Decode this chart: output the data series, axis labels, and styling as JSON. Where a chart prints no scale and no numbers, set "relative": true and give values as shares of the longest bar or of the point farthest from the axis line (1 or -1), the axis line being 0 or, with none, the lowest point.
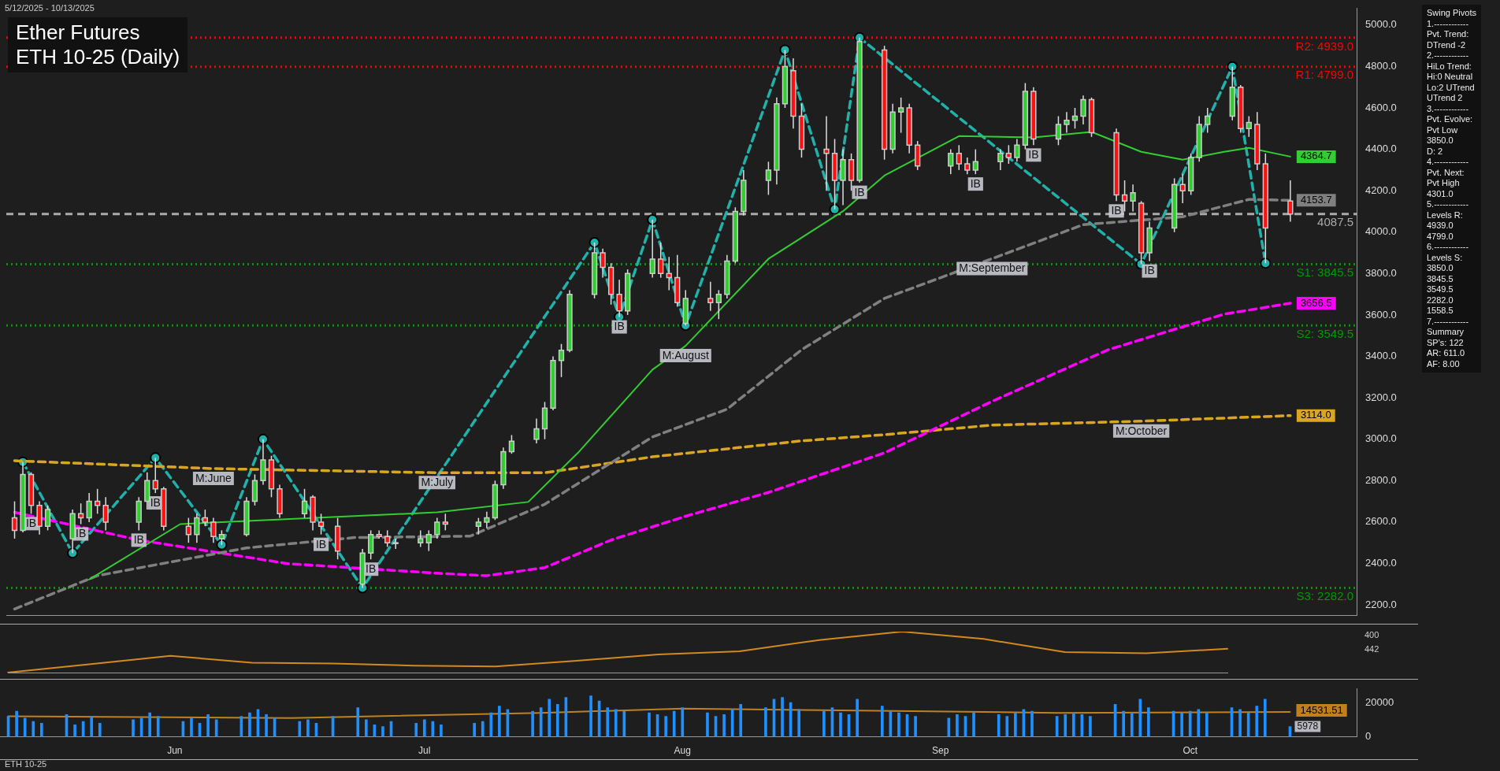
{
  "chart_data": [
    {
      "type": "candlestick",
      "title": "Ether Futures",
      "subtitle": "ETH 10-25 (Daily)",
      "x": [
        "2025-05-12",
        "2025-05-13",
        "2025-05-14",
        "2025-05-15",
        "2025-05-16",
        "2025-05-19",
        "2025-05-20",
        "2025-05-21",
        "2025-05-22",
        "2025-05-23",
        "2025-05-27",
        "2025-05-28",
        "2025-05-29",
        "2025-05-30",
        "2025-06-02",
        "2025-06-03",
        "2025-06-04",
        "2025-06-05",
        "2025-06-06",
        "2025-06-09",
        "2025-06-10",
        "2025-06-11",
        "2025-06-12",
        "2025-06-13",
        "2025-06-16",
        "2025-06-17",
        "2025-06-18",
        "2025-06-20",
        "2025-06-23",
        "2025-06-24",
        "2025-06-25",
        "2025-06-26",
        "2025-06-27",
        "2025-06-30",
        "2025-07-01",
        "2025-07-02",
        "2025-07-03",
        "2025-07-07",
        "2025-07-08",
        "2025-07-09",
        "2025-07-10",
        "2025-07-11",
        "2025-07-14",
        "2025-07-15",
        "2025-07-16",
        "2025-07-17",
        "2025-07-18",
        "2025-07-21",
        "2025-07-22",
        "2025-07-23",
        "2025-07-24",
        "2025-07-25",
        "2025-07-28",
        "2025-07-29",
        "2025-07-30",
        "2025-07-31",
        "2025-08-01",
        "2025-08-04",
        "2025-08-05",
        "2025-08-06",
        "2025-08-07",
        "2025-08-08",
        "2025-08-11",
        "2025-08-12",
        "2025-08-13",
        "2025-08-14",
        "2025-08-15",
        "2025-08-18",
        "2025-08-19",
        "2025-08-20",
        "2025-08-21",
        "2025-08-22",
        "2025-08-25",
        "2025-08-26",
        "2025-08-27",
        "2025-08-28",
        "2025-08-29",
        "2025-09-02",
        "2025-09-03",
        "2025-09-04",
        "2025-09-05",
        "2025-09-08",
        "2025-09-09",
        "2025-09-10",
        "2025-09-11",
        "2025-09-12",
        "2025-09-15",
        "2025-09-16",
        "2025-09-17",
        "2025-09-18",
        "2025-09-19",
        "2025-09-22",
        "2025-09-23",
        "2025-09-24",
        "2025-09-25",
        "2025-09-26",
        "2025-09-29",
        "2025-09-30",
        "2025-10-01",
        "2025-10-02",
        "2025-10-03",
        "2025-10-06",
        "2025-10-07",
        "2025-10-08",
        "2025-10-09",
        "2025-10-10",
        "2025-10-13"
      ],
      "ohlc": [
        [
          2620,
          2700,
          2520,
          2560
        ],
        [
          2560,
          2890,
          2550,
          2830
        ],
        [
          2830,
          2840,
          2640,
          2680
        ],
        [
          2680,
          2700,
          2540,
          2580
        ],
        [
          2580,
          2680,
          2560,
          2660
        ],
        [
          2520,
          2660,
          2450,
          2640
        ],
        [
          2640,
          2690,
          2590,
          2620
        ],
        [
          2620,
          2740,
          2600,
          2700
        ],
        [
          2700,
          2760,
          2640,
          2680
        ],
        [
          2680,
          2720,
          2560,
          2600
        ],
        [
          2600,
          2720,
          2560,
          2700
        ],
        [
          2700,
          2840,
          2660,
          2800
        ],
        [
          2800,
          2910,
          2740,
          2760
        ],
        [
          2760,
          2770,
          2560,
          2580
        ],
        [
          2580,
          2620,
          2500,
          2540
        ],
        [
          2540,
          2640,
          2500,
          2620
        ],
        [
          2620,
          2660,
          2580,
          2600
        ],
        [
          2600,
          2620,
          2500,
          2530
        ],
        [
          2520,
          2560,
          2490,
          2540
        ],
        [
          2540,
          2720,
          2530,
          2700
        ],
        [
          2700,
          2830,
          2680,
          2800
        ],
        [
          2800,
          3000,
          2780,
          2900
        ],
        [
          2900,
          2920,
          2720,
          2760
        ],
        [
          2760,
          2780,
          2620,
          2640
        ],
        [
          2640,
          2760,
          2620,
          2700
        ],
        [
          2720,
          2730,
          2560,
          2600
        ],
        [
          2600,
          2640,
          2540,
          2580
        ],
        [
          2580,
          2620,
          2420,
          2460
        ],
        [
          2300,
          2470,
          2282,
          2450
        ],
        [
          2450,
          2560,
          2420,
          2540
        ],
        [
          2540,
          2560,
          2520,
          2530
        ],
        [
          2530,
          2560,
          2480,
          2500
        ],
        [
          2500,
          2520,
          2470,
          2500
        ],
        [
          2500,
          2560,
          2480,
          2520
        ],
        [
          2500,
          2560,
          2460,
          2540
        ],
        [
          2540,
          2620,
          2520,
          2600
        ],
        [
          2600,
          2640,
          2560,
          2590
        ],
        [
          2580,
          2620,
          2540,
          2600
        ],
        [
          2600,
          2650,
          2570,
          2620
        ],
        [
          2620,
          2800,
          2610,
          2780
        ],
        [
          2780,
          2960,
          2760,
          2940
        ],
        [
          2940,
          3020,
          2930,
          2990
        ],
        [
          3000,
          3100,
          2980,
          3050
        ],
        [
          3050,
          3180,
          3000,
          3150
        ],
        [
          3150,
          3400,
          3140,
          3380
        ],
        [
          3380,
          3460,
          3300,
          3430
        ],
        [
          3430,
          3720,
          3420,
          3700
        ],
        [
          3700,
          3950,
          3680,
          3900
        ],
        [
          3900,
          3920,
          3780,
          3830
        ],
        [
          3830,
          3850,
          3650,
          3700
        ],
        [
          3700,
          3770,
          3590,
          3620
        ],
        [
          3620,
          3820,
          3600,
          3800
        ],
        [
          3800,
          4060,
          3780,
          3870
        ],
        [
          3870,
          3950,
          3780,
          3800
        ],
        [
          3800,
          3880,
          3720,
          3780
        ],
        [
          3780,
          3890,
          3640,
          3660
        ],
        [
          3560,
          3720,
          3549.5,
          3680
        ],
        [
          3680,
          3760,
          3620,
          3660
        ],
        [
          3660,
          3720,
          3580,
          3700
        ],
        [
          3700,
          3890,
          3680,
          3860
        ],
        [
          3860,
          4120,
          3850,
          4100
        ],
        [
          4100,
          4300,
          4080,
          4250
        ],
        [
          4250,
          4340,
          4180,
          4300
        ],
        [
          4300,
          4650,
          4230,
          4620
        ],
        [
          4620,
          4880,
          4600,
          4800
        ],
        [
          4780,
          4840,
          4500,
          4560
        ],
        [
          4560,
          4620,
          4360,
          4400
        ],
        [
          4400,
          4560,
          4200,
          4380
        ],
        [
          4380,
          4450,
          4110,
          4250
        ],
        [
          4250,
          4400,
          4130,
          4350
        ],
        [
          4350,
          4380,
          4200,
          4250
        ],
        [
          4250,
          4939,
          4240,
          4920
        ],
        [
          4880,
          4900,
          4350,
          4400
        ],
        [
          4400,
          4620,
          4380,
          4580
        ],
        [
          4580,
          4650,
          4480,
          4600
        ],
        [
          4600,
          4620,
          4380,
          4420
        ],
        [
          4420,
          4440,
          4300,
          4320
        ],
        [
          4320,
          4400,
          4280,
          4380
        ],
        [
          4380,
          4420,
          4300,
          4330
        ],
        [
          4330,
          4360,
          4280,
          4300
        ],
        [
          4300,
          4400,
          4280,
          4340
        ],
        [
          4340,
          4400,
          4300,
          4380
        ],
        [
          4380,
          4420,
          4330,
          4360
        ],
        [
          4360,
          4450,
          4340,
          4420
        ],
        [
          4420,
          4720,
          4400,
          4680
        ],
        [
          4680,
          4700,
          4420,
          4450
        ],
        [
          4450,
          4560,
          4420,
          4520
        ],
        [
          4520,
          4580,
          4480,
          4540
        ],
        [
          4540,
          4600,
          4500,
          4560
        ],
        [
          4560,
          4660,
          4520,
          4640
        ],
        [
          4640,
          4650,
          4460,
          4480
        ],
        [
          4480,
          4500,
          4150,
          4180
        ],
        [
          4180,
          4250,
          4100,
          4150
        ],
        [
          4150,
          4230,
          4100,
          4190
        ],
        [
          4140,
          4150,
          3845.5,
          3900
        ],
        [
          3900,
          4050,
          3860,
          4020
        ],
        [
          4020,
          4260,
          4000,
          4230
        ],
        [
          4230,
          4280,
          4140,
          4200
        ],
        [
          4200,
          4380,
          4180,
          4360
        ],
        [
          4360,
          4560,
          4340,
          4520
        ],
        [
          4520,
          4600,
          4480,
          4560
        ],
        [
          4560,
          4799,
          4540,
          4700
        ],
        [
          4700,
          4710,
          4480,
          4500
        ],
        [
          4500,
          4560,
          4460,
          4530
        ],
        [
          4520,
          4580,
          4300,
          4330
        ],
        [
          4330,
          4380,
          3850,
          4020
        ],
        [
          4150,
          4250,
          4050,
          4087.5
        ]
      ],
      "series": [
        {
          "type": "line",
          "color": "#33cc33",
          "line_style": "solid",
          "x": [
            "2025-05-21",
            "2025-06-01",
            "2025-07-02",
            "2025-07-13",
            "2025-07-19",
            "2025-07-28",
            "2025-08-01",
            "2025-08-11",
            "2025-08-20",
            "2025-08-25",
            "2025-09-03",
            "2025-09-12",
            "2025-09-19",
            "2025-09-25",
            "2025-09-30",
            "2025-10-05",
            "2025-10-08",
            "2025-10-13"
          ],
          "values": [
            2322,
            2590,
            2647,
            2697,
            2934,
            3336,
            3451,
            3871,
            4101,
            4273,
            4464,
            4457,
            4484,
            4388,
            4350,
            4388,
            4407,
            4364.7
          ],
          "value_labels": [
            null,
            null,
            null,
            null,
            null,
            null,
            null,
            null,
            null,
            null,
            null,
            null,
            null,
            null,
            null,
            null,
            null,
            "4364.7"
          ]
        },
        {
          "type": "line",
          "color": "#808080",
          "line_style": "dashed",
          "x": [
            "2025-05-12",
            "2025-05-22",
            "2025-06-09",
            "2025-06-22",
            "2025-07-06",
            "2025-07-15",
            "2025-07-28",
            "2025-08-06",
            "2025-08-15",
            "2025-08-25",
            "2025-09-07",
            "2025-09-18",
            "2025-09-30",
            "2025-10-08",
            "2025-10-13"
          ],
          "values": [
            2180,
            2341,
            2475,
            2525,
            2532,
            2686,
            3011,
            3145,
            3432,
            3680,
            3872,
            4036,
            4074,
            4158,
            4153.7
          ],
          "value_labels": [
            null,
            null,
            null,
            null,
            null,
            null,
            null,
            null,
            null,
            null,
            null,
            null,
            null,
            null,
            "4153.7"
          ]
        },
        {
          "type": "line",
          "color": "#ff00ff",
          "line_style": "dashed",
          "x": [
            "2025-05-12",
            "2025-05-27",
            "2025-06-14",
            "2025-07-02",
            "2025-07-08",
            "2025-07-15",
            "2025-07-23",
            "2025-08-01",
            "2025-08-11",
            "2025-08-25",
            "2025-09-07",
            "2025-09-21",
            "2025-10-05",
            "2025-10-13"
          ],
          "values": [
            2647,
            2513,
            2399,
            2353,
            2341,
            2380,
            2513,
            2628,
            2743,
            2934,
            3183,
            3432,
            3604,
            3656.5
          ],
          "value_labels": [
            null,
            null,
            null,
            null,
            null,
            null,
            null,
            null,
            null,
            null,
            null,
            null,
            null,
            "3656.5"
          ]
        },
        {
          "type": "line",
          "color": "#daa520",
          "line_style": "dashed",
          "x": [
            "2025-05-12",
            "2025-06-05",
            "2025-07-02",
            "2025-07-15",
            "2025-07-28",
            "2025-08-15",
            "2025-08-25",
            "2025-09-07",
            "2025-09-25",
            "2025-10-13"
          ],
          "values": [
            2896,
            2858,
            2838,
            2838,
            2915,
            2992,
            3022,
            3068,
            3087,
            3114.0
          ],
          "value_labels": [
            null,
            null,
            null,
            null,
            null,
            null,
            null,
            null,
            null,
            "3114.0"
          ]
        },
        {
          "type": "line",
          "color": "#20b2aa",
          "line_style": "dashed",
          "marker": "circle",
          "x": [
            "2025-05-13",
            "2025-05-19",
            "2025-05-29",
            "2025-06-06",
            "2025-06-11",
            "2025-06-23",
            "2025-07-21",
            "2025-07-24",
            "2025-07-28",
            "2025-08-01",
            "2025-08-13",
            "2025-08-19",
            "2025-08-22",
            "2025-09-25",
            "2025-10-06",
            "2025-10-10"
          ],
          "values": [
            2890,
            2450,
            2910,
            2490,
            3000,
            2282,
            3950,
            3590,
            4060,
            3549.5,
            4880,
            4110,
            4939,
            3845.5,
            4799,
            3850
          ]
        }
      ],
      "xlim": [
        "2025-05-11",
        "2025-10-21"
      ],
      "ylim": [
        2150,
        5080
      ],
      "yticks": [
        {
          "value": 2200,
          "label": "2200.0"
        },
        {
          "value": 2400,
          "label": "2400.0"
        },
        {
          "value": 2600,
          "label": "2600.0"
        },
        {
          "value": 2800,
          "label": "2800.0"
        },
        {
          "value": 3000,
          "label": "3000.0"
        },
        {
          "value": 3200,
          "label": "3200.0"
        },
        {
          "value": 3400,
          "label": "3400.0"
        },
        {
          "value": 3600,
          "label": "3600.0"
        },
        {
          "value": 3800,
          "label": "3800.0"
        },
        {
          "value": 4000,
          "label": "4000.0"
        },
        {
          "value": 4200,
          "label": "4200.0"
        },
        {
          "value": 4400,
          "label": "4400.0"
        },
        {
          "value": 4600,
          "label": "4600.0"
        },
        {
          "value": 4800,
          "label": "4800.0"
        },
        {
          "value": 5000,
          "label": "5000.0"
        }
      ],
      "tick_labels": "y",
      "ref_lines": [
        {
          "axis": "y",
          "value": 4939,
          "label": "R2: 4939.0",
          "color": "#ff0000",
          "line_style": "dotted"
        },
        {
          "axis": "y",
          "value": 4799,
          "label": "R1: 4799.0",
          "color": "#ff0000",
          "line_style": "dotted"
        },
        {
          "axis": "y",
          "value": 4087.5,
          "label": "4087.5",
          "color": "#aaaaaa",
          "line_style": "dashed"
        },
        {
          "axis": "y",
          "value": 3845.5,
          "label": "S1: 3845.5",
          "color": "#009900",
          "line_style": "dotted"
        },
        {
          "axis": "y",
          "value": 3549.5,
          "label": "S2: 3549.5",
          "color": "#009900",
          "line_style": "dotted"
        },
        {
          "axis": "y",
          "value": 2282,
          "label": "S3: 2282.0",
          "color": "#009900",
          "line_style": "dotted"
        }
      ],
      "annotations": [
        "5/12/2025 - 10/13/2025",
        "Swing Pivots\n1.------------\nPvt. Trend:\nDTrend -2\n2.------------\nHiLo Trend:\nHi:0 Neutral\nLo:2 UTrend\nUTrend 2\n3.------------\nPvt. Evolve:\nPvt Low\n3850.0\nD: 2\n4.------------\nPvt. Next:\nPvt High\n4301.0\n5.------------\nLevels R:\n4939.0\n4799.0\n6.------------\nLevels S:\n3850.0\n3845.5\n3549.5\n2282.0\n1558.5\n7.------------\nSummary\nSP's: 122\nAR: 611.0\nAF: 8.00",
        "ETH 10-25",
        {
          "text": "IB",
          "x": "2025-05-14",
          "y": 2640
        },
        {
          "text": "IB",
          "x": "2025-05-20",
          "y": 2590
        },
        {
          "text": "IB",
          "x": "2025-05-27",
          "y": 2560
        },
        {
          "text": "IB",
          "x": "2025-05-29",
          "y": 2740
        },
        {
          "text": "IB",
          "x": "2025-06-18",
          "y": 2540
        },
        {
          "text": "IB",
          "x": "2025-06-24",
          "y": 2420
        },
        {
          "text": "IB",
          "x": "2025-07-24",
          "y": 3590
        },
        {
          "text": "IB",
          "x": "2025-08-22",
          "y": 4240
        },
        {
          "text": "IB",
          "x": "2025-09-05",
          "y": 4280
        },
        {
          "text": "IB",
          "x": "2025-09-12",
          "y": 4420
        },
        {
          "text": "IB",
          "x": "2025-09-22",
          "y": 4150
        },
        {
          "text": "IB",
          "x": "2025-09-26",
          "y": 3860
        },
        {
          "text": "M:June",
          "x": "2025-06-05",
          "y": 2858
        },
        {
          "text": "M:July",
          "x": "2025-07-02",
          "y": 2838
        },
        {
          "text": "M:August",
          "x": "2025-08-01",
          "y": 3451
        },
        {
          "text": "M:September",
          "x": "2025-09-07",
          "y": 3872
        },
        {
          "text": "M:October",
          "x": "2025-09-25",
          "y": 3087
        }
      ]
    },
    {
      "type": "line",
      "relative": true,
      "color": "#d4891c",
      "categories": [
        null,
        null,
        null,
        null,
        null,
        null,
        null,
        null,
        null,
        null,
        null,
        null,
        null,
        null,
        null,
        null
      ],
      "values": [
        0,
        0.2,
        0.41,
        0.24,
        0.22,
        0.17,
        0.15,
        0.29,
        0.44,
        0.52,
        0.8,
        1,
        0.82,
        0.5,
        0.47,
        0.58
      ],
      "tick_labels": false,
      "annotations": [
        "400",
        "442"
      ]
    },
    {
      "type": "bar",
      "color": "#1e90ff",
      "x": [
        "2025-05-12",
        "2025-05-13",
        "2025-05-14",
        "2025-05-15",
        "2025-05-16",
        "2025-05-19",
        "2025-05-20",
        "2025-05-21",
        "2025-05-22",
        "2025-05-23",
        "2025-05-27",
        "2025-05-28",
        "2025-05-29",
        "2025-05-30",
        "2025-06-02",
        "2025-06-03",
        "2025-06-04",
        "2025-06-05",
        "2025-06-06",
        "2025-06-09",
        "2025-06-10",
        "2025-06-11",
        "2025-06-12",
        "2025-06-13",
        "2025-06-16",
        "2025-06-17",
        "2025-06-18",
        "2025-06-20",
        "2025-06-23",
        "2025-06-24",
        "2025-06-25",
        "2025-06-26",
        "2025-06-27",
        "2025-06-30",
        "2025-07-01",
        "2025-07-02",
        "2025-07-03",
        "2025-07-07",
        "2025-07-08",
        "2025-07-09",
        "2025-07-10",
        "2025-07-11",
        "2025-07-14",
        "2025-07-15",
        "2025-07-16",
        "2025-07-17",
        "2025-07-18",
        "2025-07-21",
        "2025-07-22",
        "2025-07-23",
        "2025-07-24",
        "2025-07-25",
        "2025-07-28",
        "2025-07-29",
        "2025-07-30",
        "2025-07-31",
        "2025-08-01",
        "2025-08-04",
        "2025-08-05",
        "2025-08-06",
        "2025-08-07",
        "2025-08-08",
        "2025-08-11",
        "2025-08-12",
        "2025-08-13",
        "2025-08-14",
        "2025-08-15",
        "2025-08-18",
        "2025-08-19",
        "2025-08-20",
        "2025-08-21",
        "2025-08-22",
        "2025-08-25",
        "2025-08-26",
        "2025-08-27",
        "2025-08-28",
        "2025-08-29",
        "2025-09-02",
        "2025-09-03",
        "2025-09-04",
        "2025-09-05",
        "2025-09-08",
        "2025-09-09",
        "2025-09-10",
        "2025-09-11",
        "2025-09-12",
        "2025-09-15",
        "2025-09-16",
        "2025-09-17",
        "2025-09-18",
        "2025-09-19",
        "2025-09-22",
        "2025-09-23",
        "2025-09-24",
        "2025-09-25",
        "2025-09-26",
        "2025-09-29",
        "2025-09-30",
        "2025-10-01",
        "2025-10-02",
        "2025-10-03",
        "2025-10-06",
        "2025-10-07",
        "2025-10-08",
        "2025-10-09",
        "2025-10-10",
        "2025-10-13"
      ],
      "values": [
        12000,
        15000,
        11000,
        9000,
        8000,
        13000,
        7000,
        9000,
        12000,
        8000,
        10000,
        11000,
        14000,
        12000,
        9000,
        11000,
        8000,
        13000,
        10000,
        12000,
        14000,
        16000,
        13000,
        11000,
        9000,
        10000,
        8000,
        12000,
        17000,
        10000,
        7000,
        6000,
        9000,
        8000,
        10000,
        9000,
        7000,
        8000,
        9000,
        14000,
        18000,
        16000,
        15000,
        17000,
        22000,
        19000,
        23000,
        24000,
        21000,
        17000,
        16000,
        15000,
        14000,
        13000,
        12000,
        15000,
        17000,
        14000,
        12000,
        13000,
        16000,
        19000,
        17000,
        22000,
        23000,
        20000,
        16000,
        15000,
        17000,
        14000,
        13000,
        22000,
        18000,
        15000,
        14000,
        13000,
        12000,
        11000,
        13000,
        12000,
        14000,
        13000,
        12000,
        14000,
        16000,
        15000,
        12000,
        13000,
        14000,
        13000,
        12000,
        19000,
        15000,
        14000,
        22000,
        17000,
        15000,
        14000,
        15000,
        16000,
        14000,
        17000,
        16000,
        14000,
        18000,
        22000,
        5978
      ],
      "series": [
        {
          "type": "line",
          "color": "#c08020",
          "x": [
            "2025-05-12",
            "2025-06-15",
            "2025-07-15",
            "2025-08-01",
            "2025-08-20",
            "2025-09-15",
            "2025-10-13"
          ],
          "values": [
            12000,
            11000,
            14000,
            16500,
            15500,
            14000,
            14531.51
          ],
          "value_labels": [
            null,
            null,
            null,
            null,
            null,
            null,
            "14531.51"
          ]
        }
      ],
      "xlim": [
        "2025-05-11",
        "2025-10-21"
      ],
      "xticks": [
        {
          "value": "2025-06-01",
          "label": "Jun"
        },
        {
          "value": "2025-07-01",
          "label": "Jul"
        },
        {
          "value": "2025-08-01",
          "label": "Aug"
        },
        {
          "value": "2025-09-01",
          "label": "Sep"
        },
        {
          "value": "2025-10-01",
          "label": "Oct"
        }
      ],
      "ylim": [
        0,
        28000
      ],
      "yticks": [
        0,
        20000
      ],
      "annotations": [
        {
          "text": "5978",
          "x": "2025-10-13",
          "y": 5978
        }
      ]
    }
  ]
}
